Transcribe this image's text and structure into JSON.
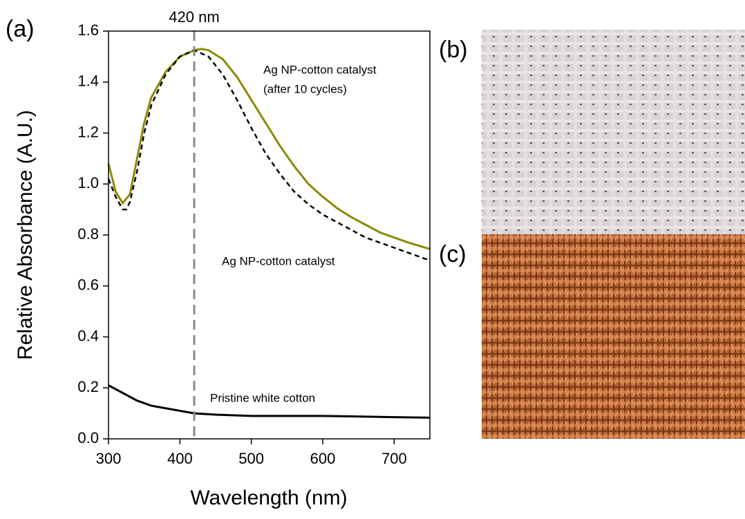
{
  "chart_data": {
    "type": "line",
    "x_label": "Wavelength (nm)",
    "y_label": "Relative Absorbance (A.U.)",
    "xlim": [
      300,
      750
    ],
    "xticks": [
      300,
      400,
      500,
      600,
      700
    ],
    "ylim": [
      0,
      1.6
    ],
    "yticks": [
      {
        "value": 0,
        "label": "0.0"
      },
      {
        "value": 0.2,
        "label": "0.2"
      },
      {
        "value": 0.4,
        "label": "0.4"
      },
      {
        "value": 0.6,
        "label": "0.6"
      },
      {
        "value": 0.8,
        "label": "0.8"
      },
      {
        "value": 1.0,
        "label": "1.0"
      },
      {
        "value": 1.2,
        "label": "1.2"
      },
      {
        "value": 1.4,
        "label": "1.4"
      },
      {
        "value": 1.6,
        "label": "1.6"
      }
    ],
    "series": [
      {
        "color": "#8b8a00",
        "dash": false,
        "x": [
          300,
          310,
          320,
          330,
          340,
          350,
          360,
          380,
          400,
          420,
          430,
          440,
          460,
          480,
          500,
          520,
          540,
          560,
          580,
          600,
          620,
          640,
          660,
          680,
          700,
          720,
          750
        ],
        "values": [
          1.08,
          0.97,
          0.925,
          0.96,
          1.1,
          1.24,
          1.34,
          1.44,
          1.5,
          1.525,
          1.53,
          1.525,
          1.49,
          1.42,
          1.33,
          1.24,
          1.15,
          1.07,
          1.0,
          0.95,
          0.905,
          0.87,
          0.84,
          0.81,
          0.79,
          0.77,
          0.745
        ]
      },
      {
        "color": "#000000",
        "dash": true,
        "x": [
          300,
          310,
          320,
          325,
          330,
          340,
          350,
          360,
          380,
          400,
          420,
          440,
          460,
          480,
          500,
          520,
          540,
          560,
          580,
          600,
          620,
          640,
          660,
          680,
          700,
          720,
          750
        ],
        "values": [
          1.02,
          0.95,
          0.9,
          0.9,
          0.93,
          1.05,
          1.2,
          1.31,
          1.43,
          1.5,
          1.525,
          1.5,
          1.43,
          1.33,
          1.22,
          1.12,
          1.04,
          0.97,
          0.92,
          0.88,
          0.85,
          0.82,
          0.79,
          0.77,
          0.75,
          0.73,
          0.7
        ]
      },
      {
        "color": "#000000",
        "dash": false,
        "x": [
          300,
          320,
          340,
          360,
          380,
          400,
          420,
          450,
          500,
          600,
          700,
          750
        ],
        "values": [
          0.21,
          0.18,
          0.15,
          0.13,
          0.12,
          0.11,
          0.1,
          0.095,
          0.09,
          0.09,
          0.085,
          0.083
        ]
      }
    ],
    "marker_line": {
      "x": 420,
      "label": "420 nm"
    },
    "annotations": [
      "Ag NP-cotton catalyst",
      "(after 10 cycles)",
      "Ag NP-cotton catalyst",
      "Pristine white cotton"
    ],
    "panel_labels": [
      "(a)",
      "(b)",
      "(c)"
    ]
  }
}
